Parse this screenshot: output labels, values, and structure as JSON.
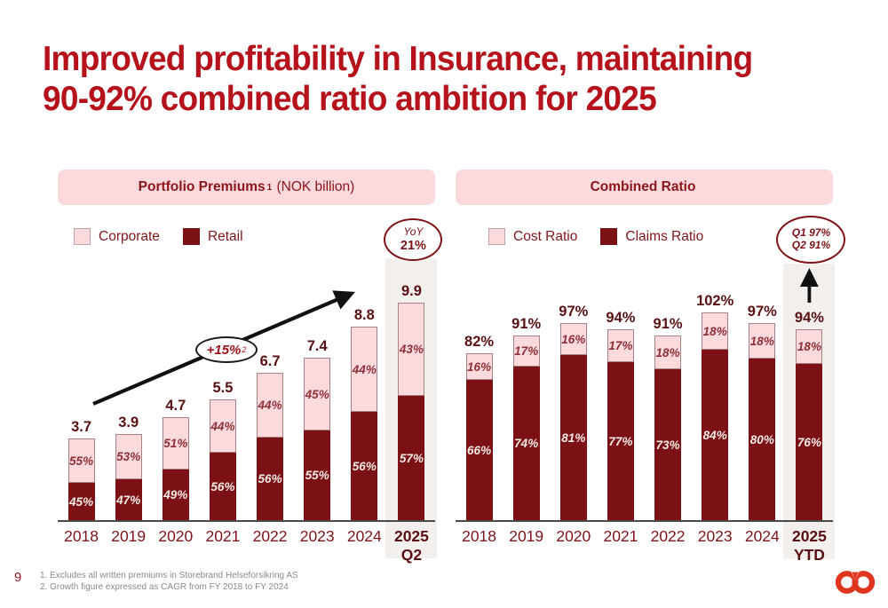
{
  "slide": {
    "title_lines": [
      "Improved profitability in Insurance, maintaining",
      "90-92% combined ratio ambition for 2025"
    ],
    "page_number": "9",
    "footnotes": [
      "1. Excludes all written premiums in Storebrand Helseforsikring AS",
      "2. Growth figure expressed as CAGR from FY 2018 to FY 2024"
    ],
    "logo": "storebrand-rings-logo"
  },
  "colors": {
    "title_red": "#B5121B",
    "pill_bg": "#FBD9DC",
    "pill_text": "#8C151B",
    "bar_maroon": "#7C1115",
    "bar_pink": "#FBDADD",
    "highlight_band": "#F2EFEC",
    "axis": "#4A4A4A",
    "logo_red": "#E0351F"
  },
  "chart_data": [
    {
      "name": "portfolio-premiums",
      "type": "bar",
      "stacked": true,
      "title": {
        "bold": "Portfolio Premiums",
        "sup": "1",
        "rest": " (NOK billion)"
      },
      "legend": [
        {
          "label": "Corporate",
          "swatch": "pink"
        },
        {
          "label": "Retail",
          "swatch": "maroon"
        }
      ],
      "badge": {
        "lines": [
          {
            "text": "YoY",
            "italic": true,
            "bold": false
          },
          {
            "text": "21%",
            "italic": false,
            "bold": true
          }
        ]
      },
      "annotation": {
        "text": "+15%",
        "sup": "2"
      },
      "trend_arrow": "diagonal-up",
      "ylim": [
        0,
        10.5
      ],
      "categories": [
        [
          "2018"
        ],
        [
          "2019"
        ],
        [
          "2020"
        ],
        [
          "2021"
        ],
        [
          "2022"
        ],
        [
          "2023"
        ],
        [
          "2024"
        ],
        [
          "2025",
          "Q2"
        ]
      ],
      "totals": [
        "3.7",
        "3.9",
        "4.7",
        "5.5",
        "6.7",
        "7.4",
        "8.8",
        "9.9"
      ],
      "values": [
        3.7,
        3.9,
        4.7,
        5.5,
        6.7,
        7.4,
        8.8,
        9.9
      ],
      "series": [
        {
          "name": "Corporate",
          "position": "top",
          "pct": [
            55,
            53,
            51,
            44,
            44,
            45,
            44,
            43
          ],
          "labels": [
            "55%",
            "53%",
            "51%",
            "44%",
            "44%",
            "45%",
            "44%",
            "43%"
          ]
        },
        {
          "name": "Retail",
          "position": "bottom",
          "pct": [
            45,
            47,
            49,
            56,
            56,
            55,
            56,
            57
          ],
          "labels": [
            "45%",
            "47%",
            "49%",
            "56%",
            "56%",
            "55%",
            "56%",
            "57%"
          ]
        }
      ],
      "highlight_last_column": true
    },
    {
      "name": "combined-ratio",
      "type": "bar",
      "stacked": true,
      "title": {
        "bold": "Combined Ratio",
        "sup": "",
        "rest": ""
      },
      "legend": [
        {
          "label": "Cost Ratio",
          "swatch": "pink"
        },
        {
          "label": "Claims Ratio",
          "swatch": "maroon"
        }
      ],
      "badge": {
        "lines": [
          {
            "text": "Q1 97%",
            "italic": true,
            "bold": true
          },
          {
            "text": "Q2 91%",
            "italic": true,
            "bold": true
          }
        ]
      },
      "annotation": null,
      "trend_arrow": "vertical-up",
      "ylim": [
        0,
        107
      ],
      "categories": [
        [
          "2018"
        ],
        [
          "2019"
        ],
        [
          "2020"
        ],
        [
          "2021"
        ],
        [
          "2022"
        ],
        [
          "2023"
        ],
        [
          "2024"
        ],
        [
          "2025",
          "YTD"
        ]
      ],
      "totals": [
        "82%",
        "91%",
        "97%",
        "94%",
        "91%",
        "102%",
        "97%",
        "94%"
      ],
      "values": [
        82,
        91,
        97,
        94,
        91,
        102,
        97,
        94
      ],
      "series": [
        {
          "name": "Cost Ratio",
          "position": "top",
          "pct": [
            16,
            17,
            16,
            17,
            18,
            18,
            18,
            18
          ],
          "labels": [
            "16%",
            "17%",
            "16%",
            "17%",
            "18%",
            "18%",
            "18%",
            "18%"
          ]
        },
        {
          "name": "Claims Ratio",
          "position": "bottom",
          "pct": [
            66,
            74,
            81,
            77,
            73,
            84,
            80,
            76
          ],
          "labels": [
            "66%",
            "74%",
            "81%",
            "77%",
            "73%",
            "84%",
            "80%",
            "76%"
          ]
        }
      ],
      "highlight_last_column": true
    }
  ]
}
